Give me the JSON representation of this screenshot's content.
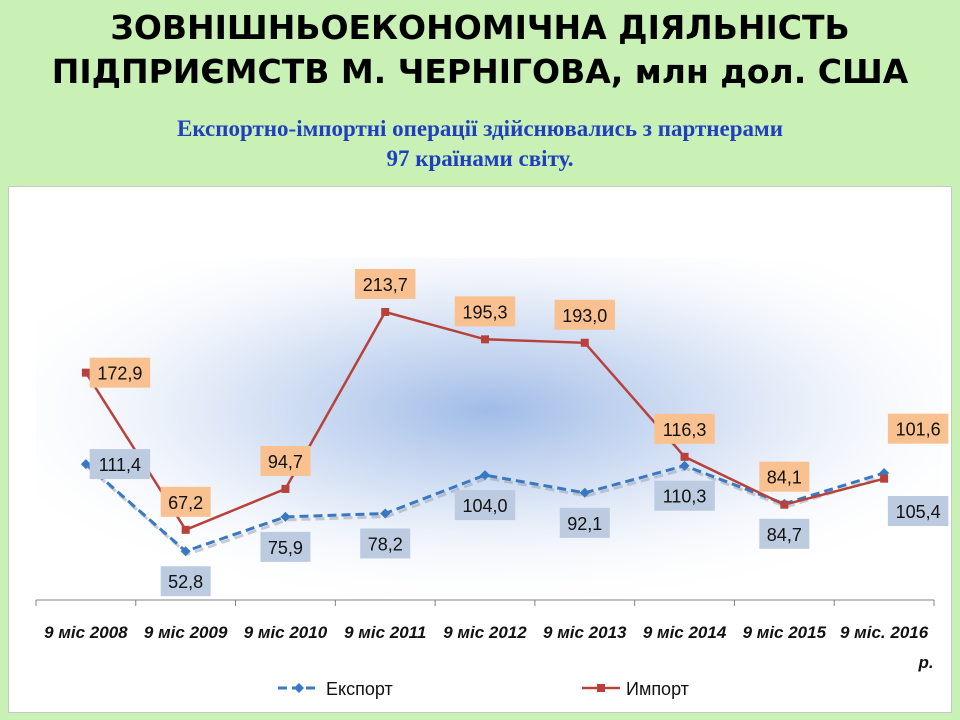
{
  "title": {
    "line1": "ЗОВНІШНЬОЕКОНОМІЧНА ДІЯЛЬНІСТЬ",
    "line2": "ПІДПРИЄМСТВ М. ЧЕРНІГОВА, млн дол. США"
  },
  "subtitle": {
    "line1": "Експортно-імпортні операції здійснювались з партнерами",
    "line2": "97 країнами світу."
  },
  "colors": {
    "export": "#3a78c2",
    "import": "#b8413b",
    "export_label_bg": "#bccbe0",
    "import_label_bg": "#f9c18f",
    "page_bg": "#c9f0b5"
  },
  "chart_data": {
    "type": "line",
    "categories": [
      "9 міс 2008",
      "9 міс 2009",
      "9 міс 2010",
      "9 міс 2011",
      "9 міс 2012",
      "9 міс 2013",
      "9 міс 2014",
      "9 міс 2015",
      "9 міс. 2016 р."
    ],
    "series": [
      {
        "name": "Експорт",
        "values": [
          111.4,
          52.8,
          75.9,
          78.2,
          104.0,
          92.1,
          110.3,
          84.7,
          105.4
        ],
        "labels": [
          "111,4",
          "52,8",
          "75,9",
          "78,2",
          "104,0",
          "92,1",
          "110,3",
          "84,7",
          "105,4"
        ]
      },
      {
        "name": "Импорт",
        "values": [
          172.9,
          67.2,
          94.7,
          213.7,
          195.3,
          193.0,
          116.3,
          84.1,
          101.6
        ],
        "labels": [
          "172,9",
          "67,2",
          "94,7",
          "213,7",
          "195,3",
          "193,0",
          "116,3",
          "84,1",
          "101,6"
        ]
      }
    ],
    "ylim": [
      20,
      250
    ],
    "grid": false,
    "legend": "bottom"
  }
}
